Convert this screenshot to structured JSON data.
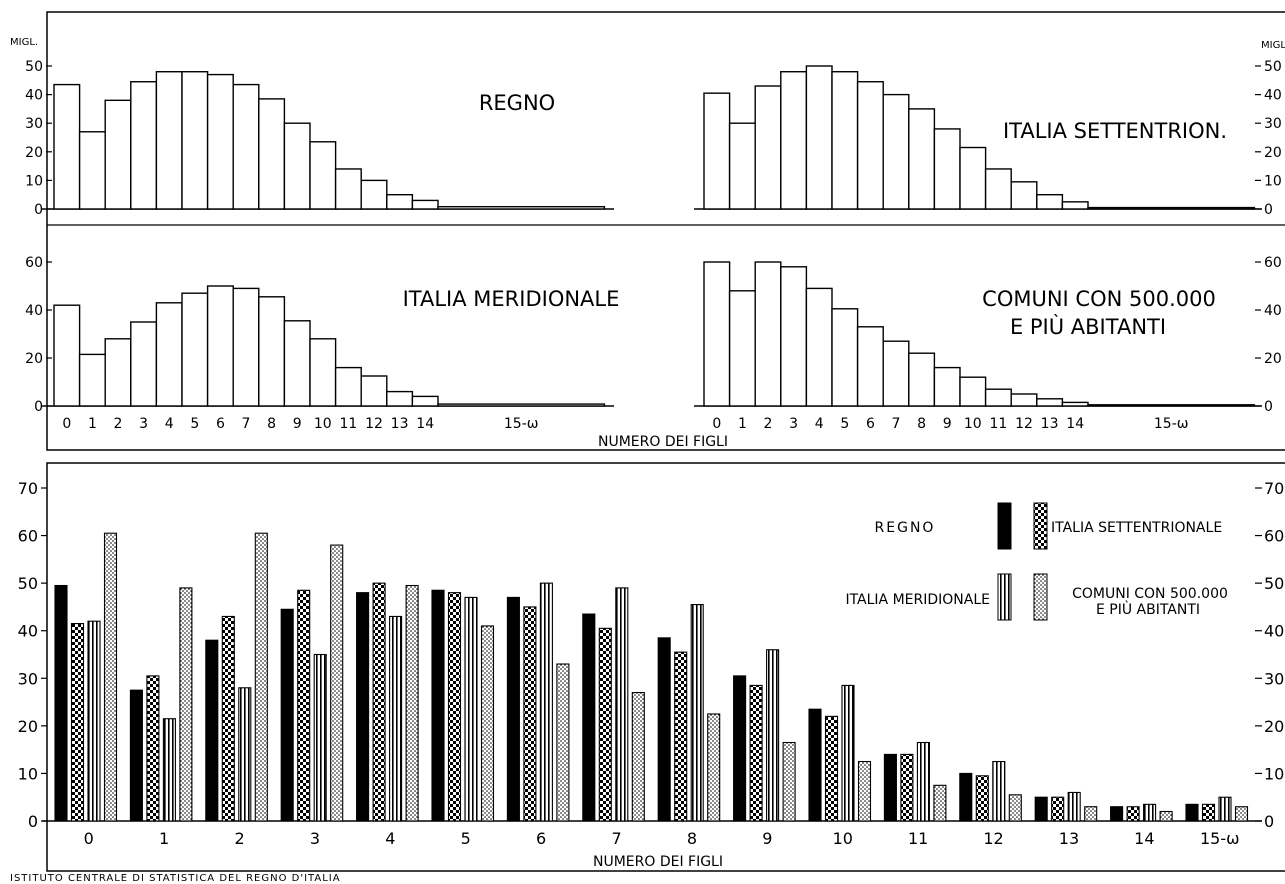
{
  "footer": "ISTITUTO CENTRALE DI STATISTICA DEL REGNO D'ITALIA",
  "unit_label": "MIGL.",
  "unit_label_right": "MIGL",
  "xlabel": "NUMERO DEI FIGLI",
  "chart_data": [
    {
      "type": "bar",
      "title": "REGNO",
      "categories": [
        "0",
        "1",
        "2",
        "3",
        "4",
        "5",
        "6",
        "7",
        "8",
        "9",
        "10",
        "11",
        "12",
        "13",
        "14",
        "15-ω"
      ],
      "values": [
        43.5,
        27,
        38,
        44.5,
        48,
        48,
        47,
        43.5,
        38.5,
        30,
        23.5,
        14,
        10,
        5,
        3,
        0.8
      ],
      "ylim": [
        0,
        55
      ],
      "yticks": [
        0,
        10,
        20,
        30,
        40,
        50
      ]
    },
    {
      "type": "bar",
      "title": "ITALIA SETTENTRION.",
      "categories": [
        "0",
        "1",
        "2",
        "3",
        "4",
        "5",
        "6",
        "7",
        "8",
        "9",
        "10",
        "11",
        "12",
        "13",
        "14",
        "15-ω"
      ],
      "values": [
        40.5,
        30,
        43,
        48,
        50,
        48,
        44.5,
        40,
        35,
        28,
        21.5,
        14,
        9.5,
        5,
        2.5,
        0.5
      ],
      "ylim": [
        0,
        55
      ],
      "yticks": [
        0,
        10,
        20,
        30,
        40,
        50
      ]
    },
    {
      "type": "bar",
      "title": "ITALIA MERIDIONALE",
      "categories": [
        "0",
        "1",
        "2",
        "3",
        "4",
        "5",
        "6",
        "7",
        "8",
        "9",
        "10",
        "11",
        "12",
        "13",
        "14",
        "15-ω"
      ],
      "values": [
        42,
        21.5,
        28,
        35,
        43,
        47,
        50,
        49,
        45.5,
        35.5,
        28,
        16,
        12.5,
        6,
        4,
        0.8
      ],
      "ylim": [
        0,
        65
      ],
      "yticks": [
        0,
        20,
        40,
        60
      ]
    },
    {
      "type": "bar",
      "title": "COMUNI CON 500.000 E PIÙ ABITANTI",
      "categories": [
        "0",
        "1",
        "2",
        "3",
        "4",
        "5",
        "6",
        "7",
        "8",
        "9",
        "10",
        "11",
        "12",
        "13",
        "14",
        "15-ω"
      ],
      "values": [
        60,
        48,
        60,
        58,
        49,
        40.5,
        33,
        27,
        22,
        16,
        12,
        7,
        5,
        3,
        1.5,
        0.5
      ],
      "ylim": [
        0,
        65
      ],
      "yticks": [
        0,
        20,
        40,
        60
      ]
    },
    {
      "type": "bar",
      "xlabel": "NUMERO DEI FIGLI",
      "categories": [
        "0",
        "1",
        "2",
        "3",
        "4",
        "5",
        "6",
        "7",
        "8",
        "9",
        "10",
        "11",
        "12",
        "13",
        "14",
        "15-ω"
      ],
      "ylim": [
        0,
        73
      ],
      "yticks": [
        0,
        10,
        20,
        30,
        40,
        50,
        60,
        70
      ],
      "legend_position": "top-right",
      "series": [
        {
          "name": "REGNO",
          "pattern": "solid",
          "values": [
            49.5,
            27.5,
            38,
            44.5,
            48,
            48.5,
            47,
            43.5,
            38.5,
            30.5,
            23.5,
            14,
            10,
            5,
            3,
            3.5
          ]
        },
        {
          "name": "ITALIA SETTENTRIONALE",
          "pattern": "checker",
          "values": [
            41.5,
            30.5,
            43,
            48.5,
            50,
            48,
            45,
            40.5,
            35.5,
            28.5,
            22,
            14,
            9.5,
            5,
            3,
            3.5
          ]
        },
        {
          "name": "ITALIA MERIDIONALE",
          "pattern": "vertical-lines",
          "values": [
            42,
            21.5,
            28,
            35,
            43,
            47,
            50,
            49,
            45.5,
            36,
            28.5,
            16.5,
            12.5,
            6,
            3.5,
            5
          ]
        },
        {
          "name": "COMUNI CON 500.000 E PIÙ ABITANTI",
          "pattern": "dots",
          "values": [
            60.5,
            49,
            60.5,
            58,
            49.5,
            41,
            33,
            27,
            22.5,
            16.5,
            12.5,
            7.5,
            5.5,
            3,
            2,
            3
          ]
        }
      ]
    }
  ]
}
